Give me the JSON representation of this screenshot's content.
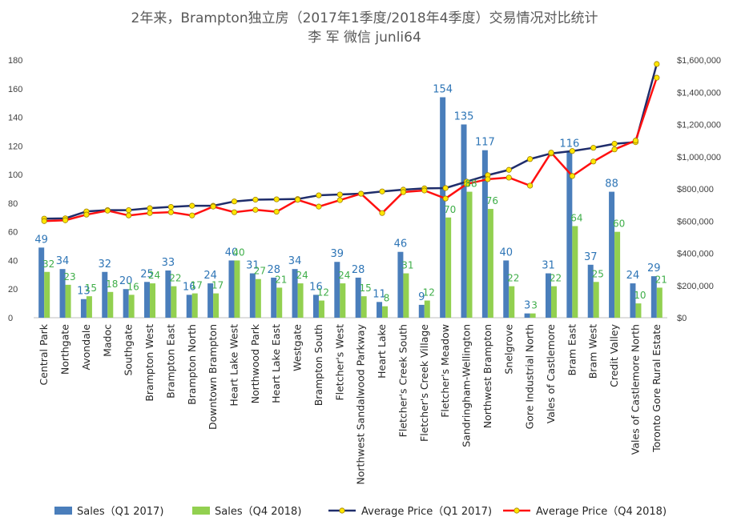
{
  "chart_data": {
    "type": "bar",
    "title": "2年来，Brampton独立房（2017年1季度/2018年4季度）交易情况对比统计",
    "subtitle": "李 军  微信  junli64",
    "categories": [
      "Central Park",
      "Northgate",
      "Avondale",
      "Madoc",
      "Southgate",
      "Brampton West",
      "Brampton East",
      "Brampton North",
      "Downtown Brampton",
      "Heart Lake West",
      "Northwood Park",
      "Heart Lake East",
      "Westgate",
      "Brampton South",
      "Fletcher's West",
      "Northwest Sandalwood Parkway",
      "Heart Lake",
      "Fletcher's Creek South",
      "Fletcher's Creek Village",
      "Fletcher's Meadow",
      "Sandringham-Wellington",
      "Northwest Brampton",
      "Snelgrove",
      "Gore Industrial North",
      "Vales of Castlemore",
      "Bram East",
      "Bram West",
      "Credit Valley",
      "Vales of Castlemore North",
      "Toronto Gore Rural Estate"
    ],
    "series": [
      {
        "name": "Sales（Q1 2017)",
        "type": "bar",
        "axis": "left",
        "color": "#4A7EBB",
        "values": [
          49,
          34,
          13,
          32,
          20,
          25,
          33,
          16,
          24,
          40,
          31,
          28,
          34,
          16,
          39,
          28,
          11,
          46,
          9,
          154,
          135,
          117,
          40,
          3,
          31,
          116,
          37,
          88,
          24,
          29
        ]
      },
      {
        "name": "Sales（Q4 2018)",
        "type": "bar",
        "axis": "left",
        "color": "#92D050",
        "values": [
          32,
          23,
          15,
          18,
          16,
          24,
          22,
          17,
          17,
          40,
          27,
          21,
          24,
          12,
          24,
          15,
          8,
          31,
          12,
          70,
          88,
          76,
          22,
          3,
          22,
          64,
          25,
          60,
          10,
          21
        ]
      },
      {
        "name": "Average Price（Q1 2017)",
        "type": "line",
        "axis": "right",
        "color": "#1F2D6B",
        "values": [
          615000,
          617000,
          660000,
          668000,
          668000,
          680000,
          688000,
          695000,
          695000,
          722000,
          733000,
          735000,
          737000,
          760000,
          765000,
          770000,
          784000,
          795000,
          803000,
          805000,
          845000,
          885000,
          918000,
          985000,
          1020000,
          1035000,
          1055000,
          1080000,
          1090000,
          1575000
        ]
      },
      {
        "name": "Average Price（Q4 2018)",
        "type": "line",
        "axis": "right",
        "color": "#FF1010",
        "values": [
          600000,
          605000,
          640000,
          665000,
          635000,
          650000,
          655000,
          635000,
          690000,
          655000,
          670000,
          658000,
          732000,
          690000,
          730000,
          770000,
          650000,
          780000,
          790000,
          740000,
          830000,
          860000,
          870000,
          820000,
          1025000,
          880000,
          970000,
          1045000,
          1100000,
          1490000
        ]
      }
    ],
    "ylim": [
      0,
      180
    ],
    "y2lim": [
      0,
      1600000
    ],
    "y_ticks": [
      "0",
      "20",
      "40",
      "60",
      "80",
      "100",
      "120",
      "140",
      "160",
      "180"
    ],
    "y2_ticks": [
      "$0",
      "$200,000",
      "$400,000",
      "$600,000",
      "$800,000",
      "$1,000,000",
      "$1,200,000",
      "$1,400,000",
      "$1,600,000"
    ],
    "legend_position": "bottom",
    "grid": false
  }
}
